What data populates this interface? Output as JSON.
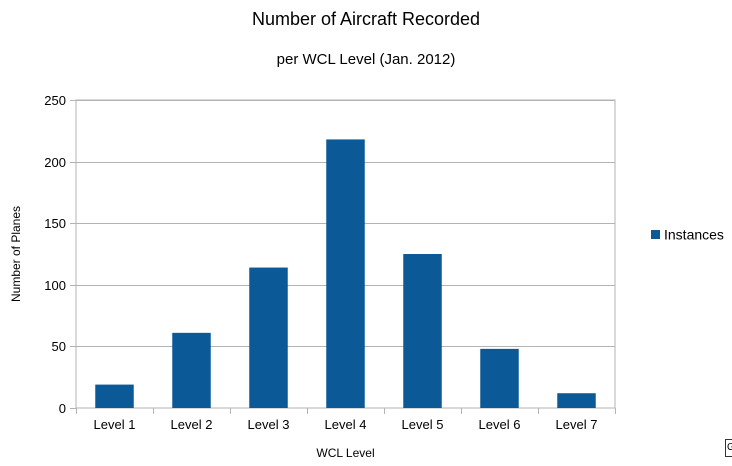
{
  "chart_data": {
    "type": "bar",
    "title": "Number of Aircraft Recorded",
    "subtitle": "per WCL Level (Jan. 2012)",
    "xlabel": "WCL Level",
    "ylabel": "Number of Planes",
    "categories": [
      "Level 1",
      "Level 2",
      "Level 3",
      "Level 4",
      "Level 5",
      "Level 6",
      "Level 7"
    ],
    "series": [
      {
        "name": "Instances",
        "values": [
          19,
          61,
          114,
          218,
          125,
          48,
          12
        ],
        "color": "#0b5a97"
      }
    ],
    "ylim": [
      0,
      250
    ],
    "yticks": [
      0,
      50,
      100,
      150,
      200,
      250
    ],
    "grid": true,
    "legend_position": "right"
  },
  "corner_glyph": "G"
}
